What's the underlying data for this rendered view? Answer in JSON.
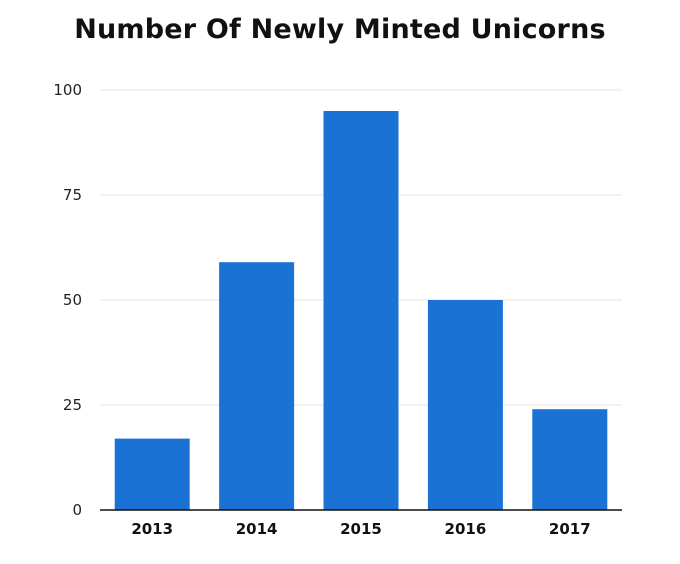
{
  "chart_data": {
    "type": "bar",
    "title": "Number Of Newly Minted Unicorns",
    "xlabel": "",
    "ylabel": "",
    "categories": [
      "2013",
      "2014",
      "2015",
      "2016",
      "2017"
    ],
    "values": [
      17,
      59,
      95,
      50,
      24
    ],
    "ylim": [
      0,
      100
    ],
    "yticks": [
      0,
      25,
      50,
      75,
      100
    ],
    "grid": true,
    "legend": "none",
    "bar_color": "#1a73d4",
    "gridline_color": "#e6e6e6",
    "axis_color": "#111111"
  }
}
